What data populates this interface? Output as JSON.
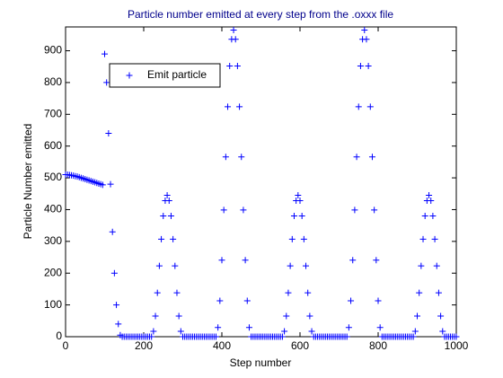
{
  "chart_data": {
    "type": "scatter",
    "title": "Particle number emitted at every step from the .oxxx file",
    "xlabel": "Step number",
    "ylabel": "Particle Number emitted",
    "xlim": [
      0,
      1000
    ],
    "ylim": [
      0,
      975
    ],
    "xticks": [
      0,
      200,
      400,
      600,
      800,
      1000
    ],
    "yticks": [
      0,
      100,
      200,
      300,
      400,
      500,
      600,
      700,
      800,
      900
    ],
    "legend": "upper left",
    "x": [
      0,
      5,
      10,
      15,
      20,
      25,
      30,
      35,
      40,
      45,
      50,
      55,
      60,
      65,
      70,
      75,
      80,
      85,
      90,
      95,
      100,
      105,
      110,
      115,
      120,
      125,
      130,
      135,
      140,
      145,
      150,
      155,
      160,
      165,
      170,
      175,
      180,
      185,
      190,
      195,
      200,
      205,
      210,
      215,
      220,
      225,
      230,
      235,
      240,
      245,
      250,
      255,
      260,
      265,
      270,
      275,
      280,
      285,
      290,
      295,
      300,
      305,
      310,
      315,
      320,
      325,
      330,
      335,
      340,
      345,
      350,
      355,
      360,
      365,
      370,
      375,
      380,
      385,
      390,
      395,
      400,
      405,
      410,
      415,
      420,
      425,
      430,
      435,
      440,
      445,
      450,
      455,
      460,
      465,
      470,
      475,
      480,
      485,
      490,
      495,
      500,
      505,
      510,
      515,
      520,
      525,
      530,
      535,
      540,
      545,
      550,
      555,
      560,
      565,
      570,
      575,
      580,
      585,
      590,
      595,
      600,
      605,
      610,
      615,
      620,
      625,
      630,
      635,
      640,
      645,
      650,
      655,
      660,
      665,
      670,
      675,
      680,
      685,
      690,
      695,
      700,
      705,
      710,
      715,
      720,
      725,
      730,
      735,
      740,
      745,
      750,
      755,
      760,
      765,
      770,
      775,
      780,
      785,
      790,
      795,
      800,
      805,
      810,
      815,
      820,
      825,
      830,
      835,
      840,
      845,
      850,
      855,
      860,
      865,
      870,
      875,
      880,
      885,
      890,
      895,
      900,
      905,
      910,
      915,
      920,
      925,
      930,
      935,
      940,
      945,
      950,
      955,
      960,
      965,
      970,
      975,
      980,
      985,
      990,
      995,
      1000
    ],
    "series": [
      {
        "name": "Emit particle",
        "color": "#0000ff",
        "values": [
          510,
          510,
          509,
          508,
          507,
          505,
          504,
          502,
          500,
          498,
          496,
          494,
          492,
          490,
          488,
          486,
          484,
          482,
          480,
          478,
          890,
          800,
          640,
          480,
          330,
          200,
          100,
          40,
          5,
          0,
          0,
          0,
          0,
          0,
          0,
          0,
          0,
          0,
          0,
          0,
          0,
          0,
          0,
          0,
          0,
          17,
          65,
          138,
          223,
          307,
          380,
          428,
          445,
          428,
          380,
          307,
          223,
          138,
          65,
          17,
          0,
          0,
          0,
          0,
          0,
          0,
          0,
          0,
          0,
          0,
          0,
          0,
          0,
          0,
          0,
          0,
          0,
          0,
          29,
          113,
          241,
          399,
          566,
          724,
          852,
          936,
          965,
          936,
          852,
          724,
          566,
          399,
          241,
          113,
          29,
          0,
          0,
          0,
          0,
          0,
          0,
          0,
          0,
          0,
          0,
          0,
          0,
          0,
          0,
          0,
          0,
          0,
          17,
          65,
          138,
          223,
          307,
          380,
          428,
          445,
          428,
          380,
          307,
          223,
          138,
          65,
          17,
          0,
          0,
          0,
          0,
          0,
          0,
          0,
          0,
          0,
          0,
          0,
          0,
          0,
          0,
          0,
          0,
          0,
          0,
          29,
          113,
          241,
          399,
          566,
          724,
          852,
          936,
          965,
          936,
          852,
          724,
          566,
          399,
          241,
          113,
          29,
          0,
          0,
          0,
          0,
          0,
          0,
          0,
          0,
          0,
          0,
          0,
          0,
          0,
          0,
          0,
          0,
          0,
          17,
          65,
          138,
          223,
          307,
          380,
          428,
          445,
          428,
          380,
          307,
          223,
          138,
          65,
          17,
          0,
          0,
          0,
          0,
          0,
          0,
          0
        ]
      }
    ]
  }
}
